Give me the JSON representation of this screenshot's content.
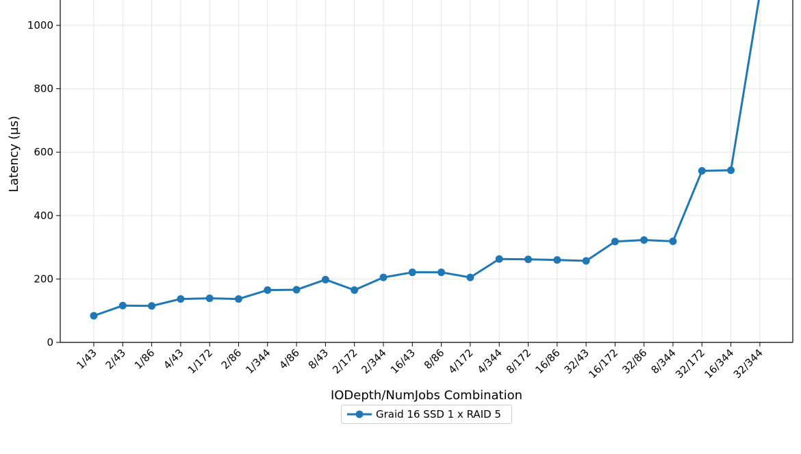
{
  "chart_data": {
    "type": "line",
    "title": "",
    "xlabel": "IODepth/NumJobs Combination",
    "ylabel": "Latency (µs)",
    "categories": [
      "1/43",
      "2/43",
      "1/86",
      "4/43",
      "1/172",
      "2/86",
      "1/344",
      "4/86",
      "8/43",
      "2/172",
      "2/344",
      "16/43",
      "8/86",
      "4/172",
      "4/344",
      "8/172",
      "16/86",
      "32/43",
      "16/172",
      "32/86",
      "8/344",
      "32/172",
      "16/344",
      "32/344"
    ],
    "ylim": [
      0,
      1080
    ],
    "yticks": [
      "0",
      "200",
      "400",
      "600",
      "800",
      "1000"
    ],
    "grid": true,
    "legend_position": "bottom-center",
    "series": [
      {
        "name": "Graid 16 SSD 1 x RAID 5",
        "color": "#1f77b4",
        "values": [
          84,
          116,
          115,
          137,
          139,
          137,
          165,
          166,
          198,
          165,
          205,
          221,
          221,
          205,
          263,
          262,
          260,
          257,
          318,
          323,
          319,
          541,
          543,
          1100
        ]
      }
    ]
  }
}
